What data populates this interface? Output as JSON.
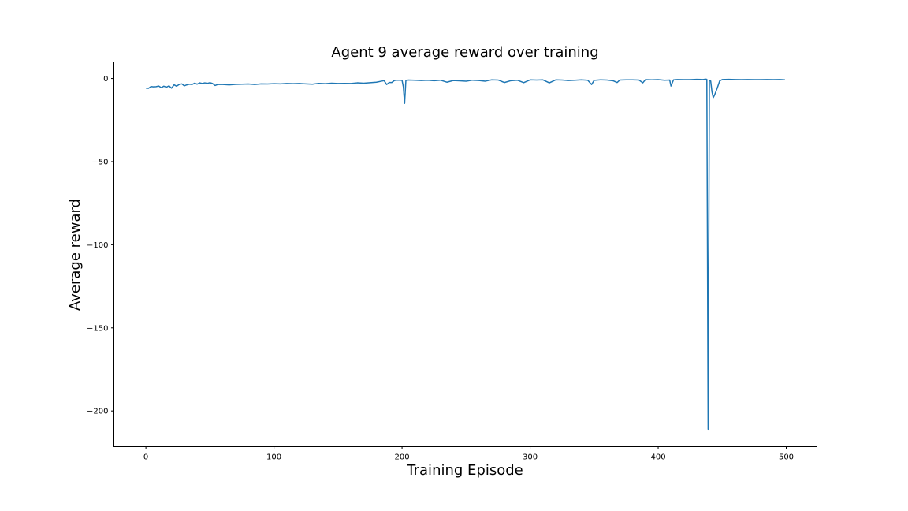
{
  "chart_data": {
    "type": "line",
    "title": "Agent 9 average reward over training",
    "xlabel": "Training Episode",
    "ylabel": "Average reward",
    "xlim": [
      -25,
      524
    ],
    "ylim": [
      -221.5,
      10
    ],
    "xticks": [
      0,
      100,
      200,
      300,
      400,
      500
    ],
    "yticks": [
      0,
      -50,
      -100,
      -150,
      -200
    ],
    "xtick_labels": [
      "0",
      "100",
      "200",
      "300",
      "400",
      "500"
    ],
    "ytick_labels": [
      "0",
      "−50",
      "−100",
      "−150",
      "−200"
    ],
    "grid": false,
    "legend": "none",
    "series": [
      {
        "color": "#1f77b4",
        "x": [
          0,
          2,
          4,
          6,
          8,
          10,
          12,
          14,
          16,
          18,
          20,
          22,
          24,
          26,
          28,
          30,
          32,
          34,
          36,
          38,
          40,
          42,
          44,
          46,
          48,
          50,
          52,
          54,
          56,
          60,
          65,
          70,
          75,
          80,
          85,
          90,
          95,
          100,
          105,
          110,
          115,
          120,
          125,
          130,
          135,
          140,
          145,
          150,
          155,
          160,
          165,
          170,
          175,
          180,
          184,
          186,
          188,
          190,
          192,
          194,
          196,
          198,
          200,
          201,
          202,
          203,
          205,
          210,
          215,
          220,
          225,
          230,
          235,
          240,
          245,
          250,
          255,
          260,
          265,
          270,
          275,
          280,
          285,
          290,
          295,
          300,
          305,
          310,
          315,
          320,
          325,
          330,
          335,
          340,
          345,
          348,
          350,
          355,
          360,
          365,
          368,
          370,
          375,
          380,
          385,
          388,
          390,
          395,
          400,
          405,
          409,
          410,
          412,
          415,
          420,
          425,
          430,
          435,
          437,
          438,
          439,
          440,
          441,
          442,
          443,
          444,
          446,
          448,
          450,
          455,
          460,
          465,
          470,
          475,
          480,
          485,
          490,
          495,
          499
        ],
        "y": [
          -5.8,
          -5.9,
          -4.8,
          -5.0,
          -4.9,
          -4.5,
          -5.5,
          -4.6,
          -5.2,
          -4.4,
          -5.8,
          -3.8,
          -4.6,
          -3.6,
          -3.2,
          -4.4,
          -3.8,
          -3.4,
          -3.6,
          -2.8,
          -3.4,
          -2.6,
          -3.0,
          -2.6,
          -2.9,
          -2.5,
          -3.0,
          -4.2,
          -3.6,
          -3.6,
          -3.8,
          -3.5,
          -3.4,
          -3.3,
          -3.6,
          -3.2,
          -3.3,
          -3.1,
          -3.2,
          -3.0,
          -3.1,
          -3.0,
          -3.2,
          -3.4,
          -2.9,
          -3.1,
          -2.8,
          -3.0,
          -2.9,
          -3.0,
          -2.6,
          -2.8,
          -2.5,
          -2.2,
          -1.6,
          -1.3,
          -3.6,
          -2.4,
          -2.4,
          -1.2,
          -1.0,
          -1.0,
          -1.1,
          -5.0,
          -15.0,
          -1.2,
          -0.9,
          -1.0,
          -1.2,
          -1.0,
          -1.3,
          -1.0,
          -2.2,
          -1.2,
          -1.4,
          -1.6,
          -1.0,
          -1.2,
          -1.6,
          -0.8,
          -0.9,
          -2.4,
          -1.3,
          -1.0,
          -2.5,
          -0.8,
          -0.9,
          -0.8,
          -2.6,
          -0.8,
          -0.9,
          -1.2,
          -1.0,
          -0.8,
          -1.0,
          -3.6,
          -1.1,
          -0.8,
          -0.9,
          -1.4,
          -2.4,
          -0.9,
          -0.8,
          -0.8,
          -0.9,
          -2.6,
          -0.7,
          -0.8,
          -0.7,
          -1.0,
          -0.9,
          -4.5,
          -0.8,
          -0.6,
          -0.7,
          -0.7,
          -0.5,
          -0.6,
          -0.4,
          -0.5,
          -211.0,
          -1.0,
          -1.5,
          -8.0,
          -11.5,
          -10.0,
          -6.0,
          -1.5,
          -0.6,
          -0.5,
          -0.6,
          -0.7,
          -0.6,
          -0.7,
          -0.7,
          -0.6,
          -0.7,
          -0.6,
          -0.8
        ]
      }
    ]
  }
}
